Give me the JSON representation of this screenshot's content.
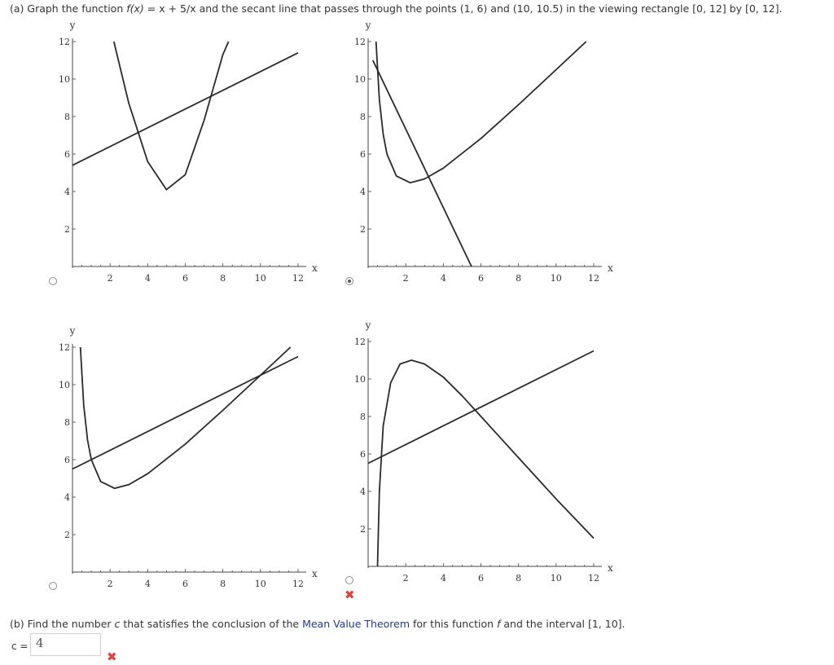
{
  "part_a": {
    "prefix": "(a) Graph the function ",
    "func": "f(x)",
    "rest": " = x + 5/x  and the secant line that passes through the points (1, 6) and (10, 10.5) in the viewing rectangle [0, 12] by [0, 12]."
  },
  "part_b": {
    "prefix": "(b) Find the number ",
    "c": "c",
    "mid": " that satisfies the conclusion of the ",
    "link": "Mean Value Theorem",
    "mid2": " for this function ",
    "f": "f",
    "suffix": " and the interval [1, 10]."
  },
  "answer": {
    "label": "c =",
    "value": "4",
    "status": "incorrect"
  },
  "options": [
    {
      "selected": false
    },
    {
      "selected": true
    },
    {
      "selected": false
    },
    {
      "selected": false,
      "status": "incorrect"
    }
  ],
  "colors": {
    "curve": "#2a2a2a",
    "axis": "#444444",
    "error": "#e2403a",
    "link": "#1f3a93"
  },
  "chart_data": [
    {
      "type": "line",
      "xlabel": "x",
      "ylabel": "y",
      "xlim": [
        0,
        12
      ],
      "ylim": [
        0,
        12
      ],
      "x_ticks": [
        "2",
        "4",
        "6",
        "8",
        "10",
        "12"
      ],
      "y_ticks": [
        "2",
        "4",
        "6",
        "8",
        "10",
        "12"
      ],
      "series": [
        {
          "points": [
            [
              2.2,
              12
            ],
            [
              3.0,
              8.7
            ],
            [
              4.0,
              5.6
            ],
            [
              5.0,
              4.1
            ],
            [
              6.0,
              4.9
            ],
            [
              7.0,
              7.8
            ],
            [
              8.0,
              11.3
            ],
            [
              8.3,
              12
            ]
          ]
        },
        {
          "points": [
            [
              0,
              5.4
            ],
            [
              12,
              11.4
            ]
          ]
        }
      ]
    },
    {
      "type": "line",
      "xlabel": "x",
      "ylabel": "y",
      "xlim": [
        0,
        12
      ],
      "ylim": [
        0,
        12
      ],
      "x_ticks": [
        "2",
        "4",
        "6",
        "8",
        "10",
        "12"
      ],
      "y_ticks": [
        "2",
        "4",
        "6",
        "8",
        "10",
        "12"
      ],
      "series": [
        {
          "points": [
            [
              0.42,
              12
            ],
            [
              0.6,
              8.9
            ],
            [
              0.8,
              7.05
            ],
            [
              1.0,
              6.0
            ],
            [
              1.5,
              4.83
            ],
            [
              2.236,
              4.47
            ],
            [
              3.0,
              4.67
            ],
            [
              4.0,
              5.25
            ],
            [
              6.0,
              6.83
            ],
            [
              8.0,
              8.63
            ],
            [
              10.0,
              10.5
            ],
            [
              11.6,
              12
            ]
          ]
        },
        {
          "points": [
            [
              0.25,
              11.0
            ],
            [
              5.5,
              0
            ]
          ]
        }
      ]
    },
    {
      "type": "line",
      "xlabel": "x",
      "ylabel": "y",
      "xlim": [
        0,
        12
      ],
      "ylim": [
        0,
        12
      ],
      "x_ticks": [
        "2",
        "4",
        "6",
        "8",
        "10",
        "12"
      ],
      "y_ticks": [
        "2",
        "4",
        "6",
        "8",
        "10",
        "12"
      ],
      "series": [
        {
          "points": [
            [
              0.42,
              12
            ],
            [
              0.6,
              8.9
            ],
            [
              0.8,
              7.05
            ],
            [
              1.0,
              6.0
            ],
            [
              1.5,
              4.83
            ],
            [
              2.236,
              4.47
            ],
            [
              3.0,
              4.67
            ],
            [
              4.0,
              5.25
            ],
            [
              6.0,
              6.83
            ],
            [
              8.0,
              8.63
            ],
            [
              10.0,
              10.5
            ],
            [
              11.6,
              12
            ]
          ]
        },
        {
          "points": [
            [
              0,
              5.5
            ],
            [
              12,
              11.5
            ]
          ]
        }
      ]
    },
    {
      "type": "line",
      "xlabel": "x",
      "ylabel": "y",
      "xlim": [
        0,
        12
      ],
      "ylim": [
        0,
        12
      ],
      "x_ticks": [
        "2",
        "4",
        "6",
        "8",
        "10",
        "12"
      ],
      "y_ticks": [
        "2",
        "4",
        "6",
        "8",
        "10",
        "12"
      ],
      "series": [
        {
          "points": [
            [
              0.5,
              0
            ],
            [
              0.6,
              4.0
            ],
            [
              0.8,
              7.5
            ],
            [
              1.2,
              9.8
            ],
            [
              1.7,
              10.8
            ],
            [
              2.3,
              11.0
            ],
            [
              3.0,
              10.8
            ],
            [
              4.0,
              10.1
            ],
            [
              5.0,
              9.1
            ],
            [
              6.0,
              8.0
            ],
            [
              7.0,
              6.9
            ],
            [
              8.0,
              5.8
            ],
            [
              9.0,
              4.7
            ],
            [
              10.0,
              3.6
            ],
            [
              12,
              1.5
            ]
          ]
        },
        {
          "points": [
            [
              0,
              5.5
            ],
            [
              12,
              11.5
            ]
          ]
        }
      ]
    }
  ]
}
